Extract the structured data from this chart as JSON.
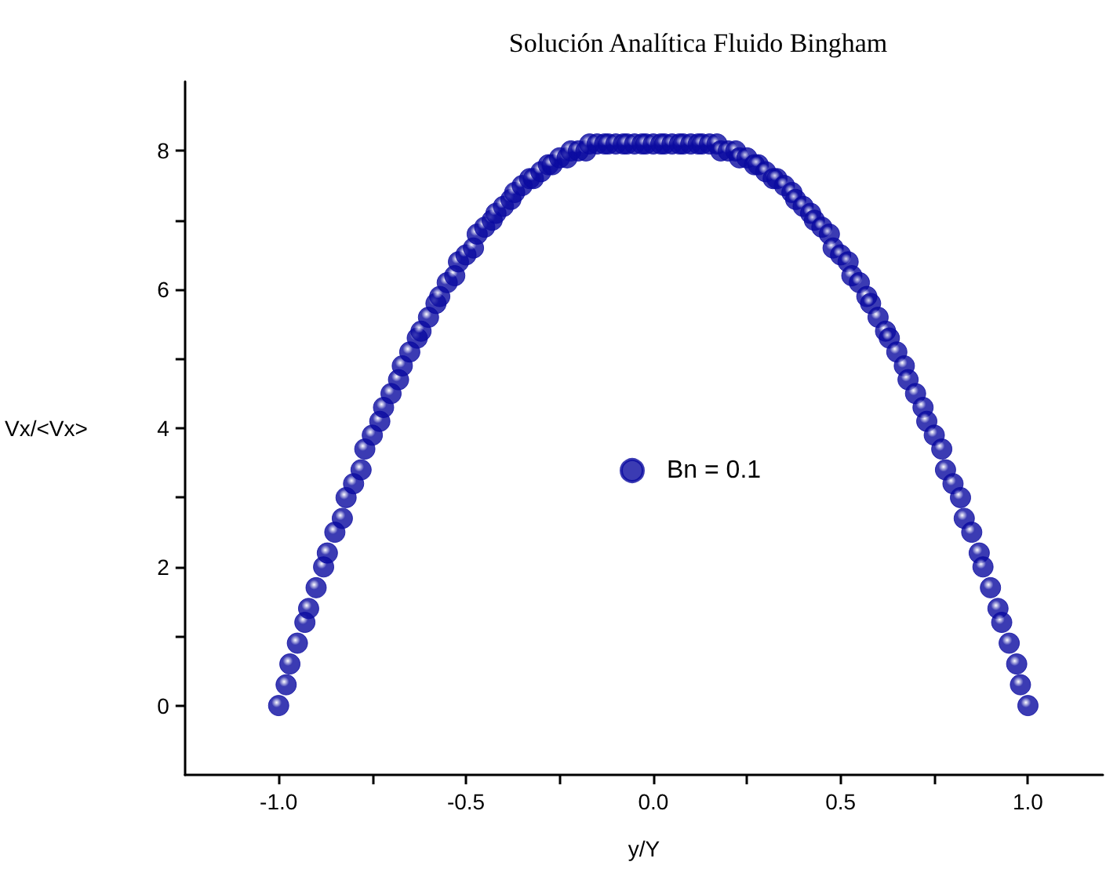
{
  "chart_data": {
    "type": "scatter",
    "title": "Solución Analítica Fluido Bingham",
    "xlabel": "y/Y",
    "ylabel": "Vx/<Vx>",
    "x": [
      -1,
      -0.98,
      -0.97,
      -0.95,
      -0.93,
      -0.92,
      -0.9,
      -0.88,
      -0.87,
      -0.85,
      -0.83,
      -0.82,
      -0.8,
      -0.78,
      -0.77,
      -0.75,
      -0.73,
      -0.72,
      -0.7,
      -0.68,
      -0.67,
      -0.65,
      -0.63,
      -0.62,
      -0.6,
      -0.58,
      -0.57,
      -0.55,
      -0.53,
      -0.52,
      -0.5,
      -0.48,
      -0.47,
      -0.45,
      -0.43,
      -0.42,
      -0.4,
      -0.38,
      -0.37,
      -0.35,
      -0.33,
      -0.32,
      -0.3,
      -0.28,
      -0.27,
      -0.25,
      -0.23,
      -0.22,
      -0.2,
      -0.18,
      -0.17,
      -0.15,
      -0.13,
      -0.12,
      -0.1,
      -0.08,
      -0.07,
      -0.05,
      -0.03,
      -0.02,
      0,
      0.02,
      0.03,
      0.05,
      0.07,
      0.08,
      0.1,
      0.12,
      0.13,
      0.15,
      0.17,
      0.18,
      0.2,
      0.22,
      0.23,
      0.25,
      0.27,
      0.28,
      0.3,
      0.32,
      0.33,
      0.35,
      0.37,
      0.38,
      0.4,
      0.42,
      0.43,
      0.45,
      0.47,
      0.48,
      0.5,
      0.52,
      0.53,
      0.55,
      0.57,
      0.58,
      0.6,
      0.62,
      0.63,
      0.65,
      0.67,
      0.68,
      0.7,
      0.72,
      0.73,
      0.75,
      0.77,
      0.78,
      0.8,
      0.82,
      0.83,
      0.85,
      0.87,
      0.88,
      0.9,
      0.92,
      0.93,
      0.95,
      0.97,
      0.98,
      1
    ],
    "series": [
      {
        "name": "Bn = 0.1",
        "color": "#0a0aa0",
        "values": [
          0,
          0.3,
          0.6,
          0.9,
          1.2,
          1.4,
          1.7,
          2.0,
          2.2,
          2.5,
          2.7,
          3.0,
          3.2,
          3.4,
          3.7,
          3.9,
          4.1,
          4.3,
          4.5,
          4.7,
          4.9,
          5.1,
          5.3,
          5.4,
          5.6,
          5.8,
          5.9,
          6.1,
          6.2,
          6.4,
          6.5,
          6.6,
          6.8,
          6.9,
          7.0,
          7.1,
          7.2,
          7.3,
          7.4,
          7.5,
          7.6,
          7.6,
          7.7,
          7.8,
          7.8,
          7.9,
          7.9,
          8.0,
          8.0,
          8.0,
          8.1,
          8.1,
          8.1,
          8.1,
          8.1,
          8.1,
          8.1,
          8.1,
          8.1,
          8.1,
          8.1,
          8.1,
          8.1,
          8.1,
          8.1,
          8.1,
          8.1,
          8.1,
          8.1,
          8.1,
          8.1,
          8.0,
          8.0,
          8.0,
          7.9,
          7.9,
          7.8,
          7.8,
          7.7,
          7.6,
          7.6,
          7.5,
          7.4,
          7.3,
          7.2,
          7.1,
          7.0,
          6.9,
          6.8,
          6.6,
          6.5,
          6.4,
          6.2,
          6.1,
          5.9,
          5.8,
          5.6,
          5.4,
          5.3,
          5.1,
          4.9,
          4.7,
          4.5,
          4.3,
          4.1,
          3.9,
          3.7,
          3.4,
          3.2,
          3.0,
          2.7,
          2.5,
          2.2,
          2.0,
          1.7,
          1.4,
          1.2,
          0.9,
          0.6,
          0.3,
          0
        ]
      }
    ],
    "xlim": [
      -1.25,
      1.2
    ],
    "ylim": [
      -1,
      9
    ],
    "xticks": [
      {
        "value": -1,
        "label": "-1.0"
      },
      {
        "value": -0.75,
        "label": null
      },
      {
        "value": -0.5,
        "label": "-0.5"
      },
      {
        "value": -0.25,
        "label": null
      },
      {
        "value": 0,
        "label": "0.0"
      },
      {
        "value": 0.25,
        "label": null
      },
      {
        "value": 0.5,
        "label": "0.5"
      },
      {
        "value": 0.75,
        "label": null
      },
      {
        "value": 1,
        "label": "1.0"
      }
    ],
    "yticks": [
      0,
      {
        "value": 1,
        "label": null
      },
      2,
      {
        "value": 3,
        "label": null
      },
      4,
      {
        "value": 5,
        "label": null
      },
      6,
      {
        "value": 7,
        "label": null
      },
      8
    ],
    "marker": "circle",
    "grid": false,
    "legend": "center"
  }
}
